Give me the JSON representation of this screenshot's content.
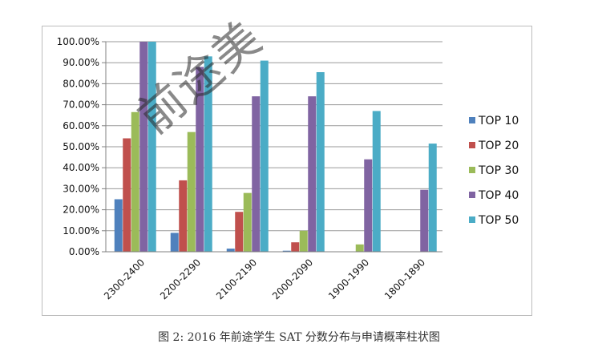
{
  "caption": "图 2: 2016 年前途学生 SAT 分数分布与申请概率柱状图",
  "watermark": "前途美",
  "chart_data": {
    "type": "bar",
    "categories": [
      "2300-2400",
      "2200-2290",
      "2100-2190",
      "2000-2090",
      "1900-1990",
      "1800-1890"
    ],
    "ylim": [
      0,
      100
    ],
    "yticks": [
      "0.00%",
      "10.00%",
      "20.00%",
      "30.00%",
      "40.00%",
      "50.00%",
      "60.00%",
      "70.00%",
      "80.00%",
      "90.00%",
      "100.00%"
    ],
    "legend_position": "right",
    "grid": true,
    "series": [
      {
        "name": "TOP 10",
        "color": "#4f81bd",
        "values": [
          25,
          9,
          1.5,
          0.5,
          0,
          0
        ]
      },
      {
        "name": "TOP 20",
        "color": "#c0504d",
        "values": [
          54,
          34,
          19,
          4.5,
          0,
          0
        ]
      },
      {
        "name": "TOP 30",
        "color": "#9bbb59",
        "values": [
          66.5,
          57,
          28,
          10,
          3.5,
          0
        ]
      },
      {
        "name": "TOP 40",
        "color": "#8064a2",
        "values": [
          100,
          88,
          74,
          74,
          44,
          29.5
        ]
      },
      {
        "name": "TOP 50",
        "color": "#4bacc6",
        "values": [
          100,
          93,
          91,
          85.5,
          67,
          51.5
        ]
      }
    ]
  }
}
